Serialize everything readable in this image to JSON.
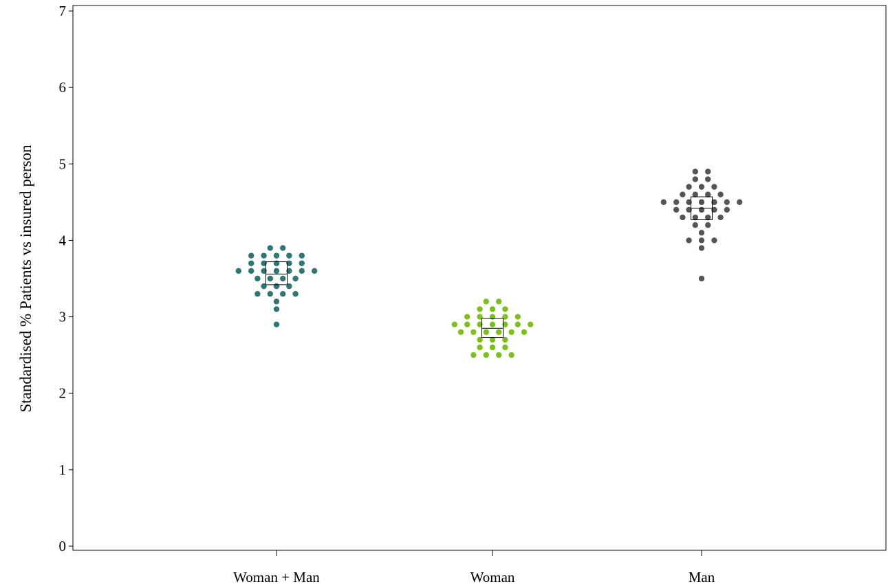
{
  "chart_data": {
    "type": "scatter",
    "title": "",
    "xlabel": "",
    "ylabel": "Standardised % Patients vs insured person",
    "ylim": [
      0,
      7
    ],
    "yticks": [
      0,
      1,
      2,
      3,
      4,
      5,
      6,
      7
    ],
    "categories": [
      "Woman + Man",
      "Woman",
      "Man"
    ],
    "grid": false,
    "legend": "none",
    "series": [
      {
        "category": "Woman + Man",
        "color": "#2e7573",
        "mean": 3.56,
        "box_range": [
          3.42,
          3.72
        ],
        "values": [
          3.9,
          3.9,
          3.8,
          3.8,
          3.8,
          3.8,
          3.8,
          3.7,
          3.7,
          3.7,
          3.7,
          3.7,
          3.6,
          3.6,
          3.6,
          3.6,
          3.6,
          3.6,
          3.6,
          3.5,
          3.5,
          3.5,
          3.5,
          3.4,
          3.4,
          3.4,
          3.3,
          3.3,
          3.3,
          3.3,
          3.2,
          3.1,
          2.9
        ]
      },
      {
        "category": "Woman",
        "color": "#7dbf1f",
        "mean": 2.85,
        "box_range": [
          2.73,
          2.98
        ],
        "values": [
          3.2,
          3.2,
          3.1,
          3.1,
          3.1,
          3.0,
          3.0,
          3.0,
          3.0,
          3.0,
          2.9,
          2.9,
          2.9,
          2.9,
          2.9,
          2.9,
          2.9,
          2.8,
          2.8,
          2.8,
          2.8,
          2.8,
          2.8,
          2.7,
          2.7,
          2.7,
          2.6,
          2.6,
          2.6,
          2.5,
          2.5,
          2.5,
          2.5
        ]
      },
      {
        "category": "Man",
        "color": "#555555",
        "mean": 4.42,
        "box_range": [
          4.27,
          4.57
        ],
        "values": [
          4.9,
          4.9,
          4.8,
          4.8,
          4.7,
          4.7,
          4.7,
          4.6,
          4.6,
          4.6,
          4.6,
          4.5,
          4.5,
          4.5,
          4.5,
          4.5,
          4.5,
          4.5,
          4.4,
          4.4,
          4.4,
          4.4,
          4.4,
          4.3,
          4.3,
          4.3,
          4.3,
          4.2,
          4.2,
          4.1,
          4.0,
          4.0,
          4.0,
          3.9,
          3.5
        ]
      }
    ]
  }
}
